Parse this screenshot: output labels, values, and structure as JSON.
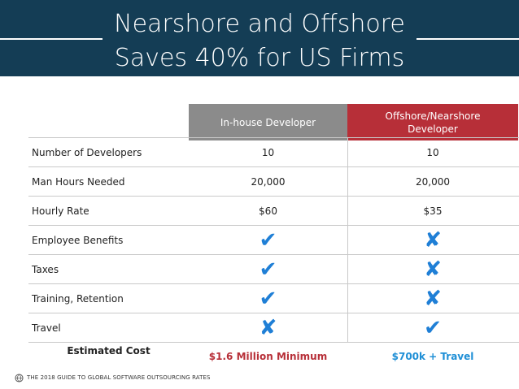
{
  "header": {
    "title_line1": "Nearshore and Offshore",
    "title_line2": "Saves 40% for US Firms",
    "background_color": "#143d55"
  },
  "columns": {
    "inhouse": {
      "label": "In-house Developer",
      "color": "#8b8b8b"
    },
    "offshore": {
      "label": "Offshore/Nearshore Developer",
      "color": "#b72f38"
    }
  },
  "rows": [
    {
      "label": "Number of Developers",
      "inhouse": "10",
      "offshore": "10"
    },
    {
      "label": "Man Hours Needed",
      "inhouse": "20,000",
      "offshore": "20,000"
    },
    {
      "label": "Hourly Rate",
      "inhouse": "$60",
      "offshore": "$35"
    },
    {
      "label": "Employee Benefits",
      "inhouse_icon": "check-icon",
      "offshore_icon": "cross-icon"
    },
    {
      "label": "Taxes",
      "inhouse_icon": "check-icon",
      "offshore_icon": "cross-icon"
    },
    {
      "label": "Training, Retention",
      "inhouse_icon": "check-icon",
      "offshore_icon": "cross-icon"
    },
    {
      "label": "Travel",
      "inhouse_icon": "cross-icon",
      "offshore_icon": "check-icon"
    }
  ],
  "estimated_cost": {
    "label": "Estimated Cost",
    "inhouse": "$1.6 Million Minimum",
    "offshore": "$700k + Travel",
    "inhouse_color": "#b72f38",
    "offshore_color": "#1f8fd6"
  },
  "footer": {
    "text": "THE 2018 GUIDE TO GLOBAL SOFTWARE OUTSOURCING RATES",
    "logo_icon": "globe-logo-icon"
  },
  "icons": {
    "check": "✔",
    "cross": "✘",
    "mark_color": "#1f7fd6"
  }
}
